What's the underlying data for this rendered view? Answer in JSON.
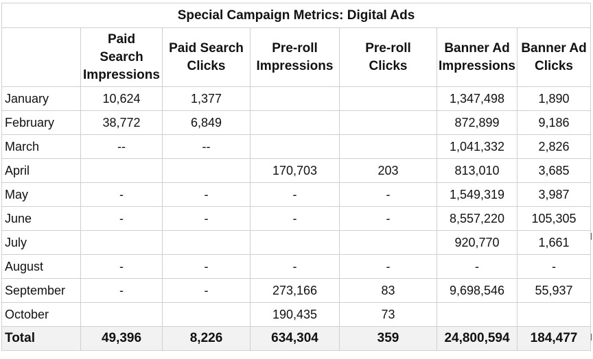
{
  "title": "Special Campaign Metrics: Digital Ads",
  "columns": [
    [
      "Paid",
      "Search",
      "Impressions"
    ],
    [
      "Paid Search",
      "Clicks"
    ],
    [
      "Pre-roll",
      "Impressions"
    ],
    [
      "Pre-roll",
      "Clicks"
    ],
    [
      "Banner Ad",
      "Impressions"
    ],
    [
      "Banner Ad",
      "Clicks"
    ]
  ],
  "rows": [
    {
      "month": "January",
      "values": [
        "10,624",
        "1,377",
        "",
        "",
        "1,347,498",
        "1,890"
      ]
    },
    {
      "month": "February",
      "values": [
        "38,772",
        "6,849",
        "",
        "",
        "872,899",
        "9,186"
      ]
    },
    {
      "month": "March",
      "values": [
        "--",
        "--",
        "",
        "",
        "1,041,332",
        "2,826"
      ]
    },
    {
      "month": "April",
      "values": [
        "",
        "",
        "170,703",
        "203",
        "813,010",
        "3,685"
      ]
    },
    {
      "month": "May",
      "values": [
        "-",
        "-",
        "-",
        "-",
        "1,549,319",
        "3,987"
      ]
    },
    {
      "month": "June",
      "values": [
        "-",
        "-",
        "-",
        "-",
        "8,557,220",
        "105,305"
      ]
    },
    {
      "month": "July",
      "values": [
        "",
        "",
        "",
        "",
        "920,770",
        "1,661"
      ]
    },
    {
      "month": "August",
      "values": [
        "-",
        "-",
        "-",
        "-",
        "-",
        "-"
      ]
    },
    {
      "month": "September",
      "values": [
        "-",
        "-",
        "273,166",
        "83",
        "9,698,546",
        "55,937"
      ]
    },
    {
      "month": "October",
      "values": [
        "",
        "",
        "190,435",
        "73",
        "",
        ""
      ]
    }
  ],
  "total": {
    "label": "Total",
    "values": [
      "49,396",
      "8,226",
      "634,304",
      "359",
      "24,800,594",
      "184,477"
    ]
  }
}
